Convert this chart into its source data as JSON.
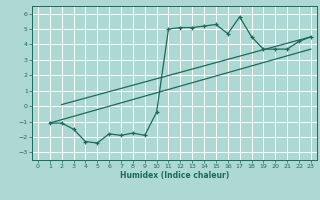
{
  "bg_color": "#aed8d4",
  "grid_color": "#ffffff",
  "line_color": "#1a6b5a",
  "xlabel": "Humidex (Indice chaleur)",
  "xlim": [
    -0.5,
    23.5
  ],
  "ylim": [
    -3.5,
    6.5
  ],
  "yticks": [
    -3,
    -2,
    -1,
    0,
    1,
    2,
    3,
    4,
    5,
    6
  ],
  "xticks": [
    0,
    1,
    2,
    3,
    4,
    5,
    6,
    7,
    8,
    9,
    10,
    11,
    12,
    13,
    14,
    15,
    16,
    17,
    18,
    19,
    20,
    21,
    22,
    23
  ],
  "line1_x": [
    1,
    2,
    3,
    4,
    5,
    6,
    7,
    8,
    9,
    10,
    11,
    12,
    13,
    14,
    15,
    16,
    17,
    18,
    19,
    20,
    21,
    22,
    23
  ],
  "line1_y": [
    -1.1,
    -1.1,
    -1.5,
    -2.3,
    -2.4,
    -1.8,
    -1.9,
    -1.75,
    -1.9,
    -0.4,
    5.0,
    5.1,
    5.1,
    5.2,
    5.3,
    4.7,
    5.8,
    4.5,
    3.7,
    3.7,
    3.7,
    4.2,
    4.5
  ],
  "line2_x": [
    2,
    23
  ],
  "line2_y": [
    0.1,
    4.5
  ],
  "line3_x": [
    1,
    23
  ],
  "line3_y": [
    -1.1,
    3.7
  ]
}
